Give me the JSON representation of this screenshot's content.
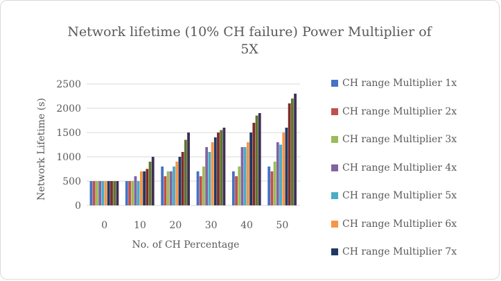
{
  "chart_data": {
    "type": "bar",
    "title": "Network lifetime (10% CH failure) Power Multiplier of 5X",
    "title_lines": [
      "Network lifetime (10% CH failure) Power Multiplier of",
      "5X"
    ],
    "xlabel": "No. of CH Percentage",
    "ylabel": "Network Lifetime (s)",
    "categories": [
      "0",
      "10",
      "20",
      "30",
      "40",
      "50"
    ],
    "ylim": [
      0,
      2500
    ],
    "yticks": [
      "0",
      "500",
      "1000",
      "1500",
      "2000",
      "2500"
    ],
    "grid": true,
    "legend_position": "right",
    "series": [
      {
        "name": "CH range Multiplier 1x",
        "color": "#4472c4",
        "values": [
          500,
          500,
          800,
          700,
          700,
          800
        ]
      },
      {
        "name": "CH range Multiplier 2x",
        "color": "#c0504d",
        "values": [
          500,
          500,
          600,
          600,
          600,
          700
        ]
      },
      {
        "name": "CH range Multiplier 3x",
        "color": "#9bbb59",
        "values": [
          500,
          500,
          700,
          800,
          800,
          900
        ]
      },
      {
        "name": "CH range Multiplier 4x",
        "color": "#8064a2",
        "values": [
          500,
          600,
          700,
          1200,
          1200,
          1300
        ]
      },
      {
        "name": "CH range Multiplier 5x",
        "color": "#4bacc6",
        "values": [
          500,
          500,
          800,
          1100,
          1200,
          1250
        ]
      },
      {
        "name": "CH range Multiplier 6x",
        "color": "#f79646",
        "values": [
          500,
          700,
          900,
          1300,
          1300,
          1500
        ]
      },
      {
        "name": "CH range Multiplier 7x",
        "color": "#1f3864",
        "values": [
          500,
          700,
          1000,
          1400,
          1500,
          1600
        ]
      },
      {
        "name": "",
        "color": "#7f2b28",
        "values": [
          500,
          750,
          1100,
          1500,
          1700,
          2100
        ]
      },
      {
        "name": "",
        "color": "#5f7530",
        "values": [
          500,
          900,
          1350,
          1550,
          1850,
          2200
        ]
      },
      {
        "name": "",
        "color": "#3f2f55",
        "values": [
          500,
          1000,
          1500,
          1600,
          1900,
          2300
        ]
      }
    ]
  }
}
